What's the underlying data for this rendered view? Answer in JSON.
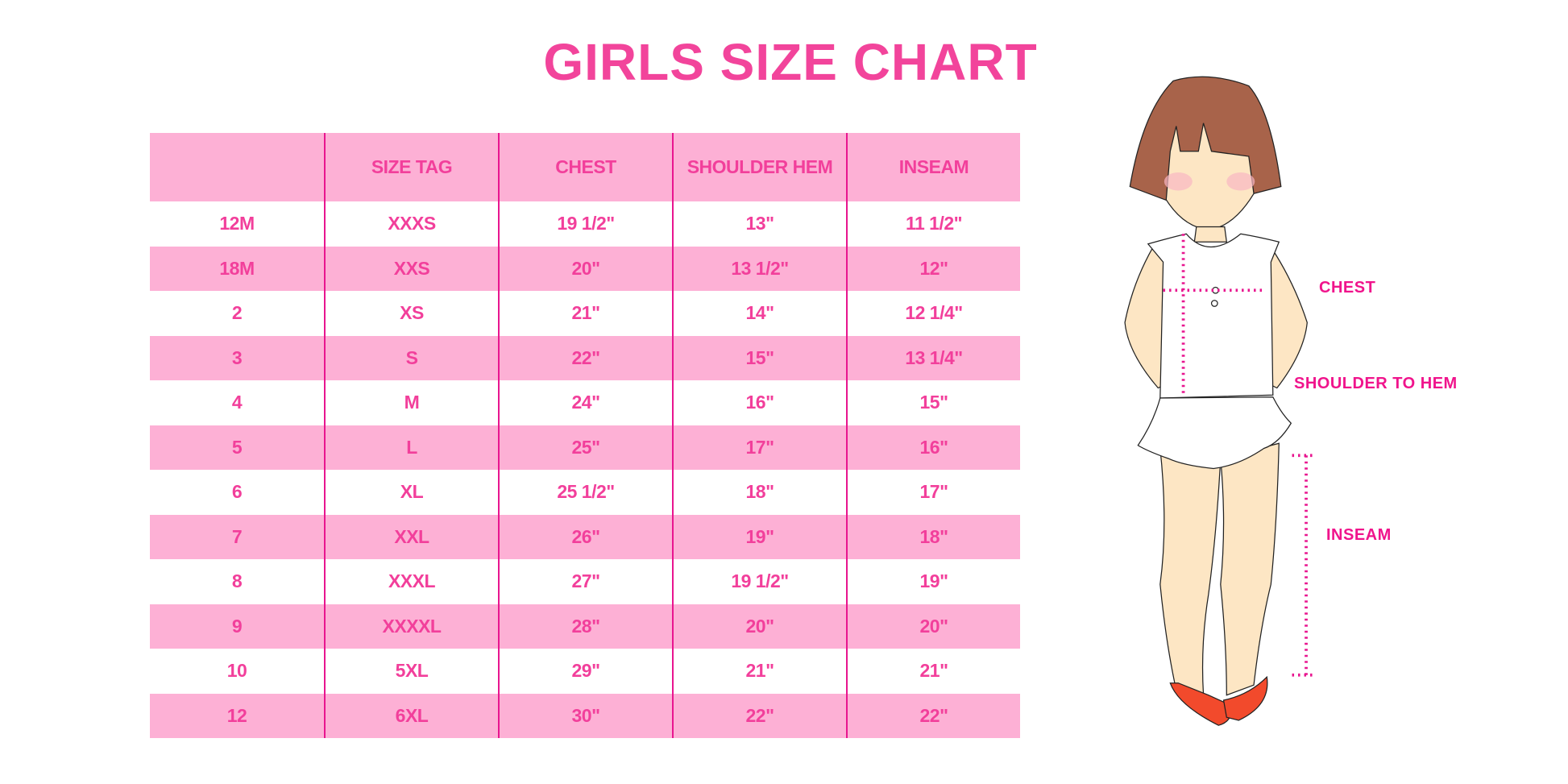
{
  "title": "GIRLS SIZE CHART",
  "colors": {
    "accent": "#f23f9b",
    "row_pink": "#fdb0d5",
    "divider": "#e8158f"
  },
  "table": {
    "headers": [
      "",
      "SIZE TAG",
      "CHEST",
      "SHOULDER HEM",
      "INSEAM"
    ],
    "rows": [
      [
        "12M",
        "XXXS",
        "19 1/2\"",
        "13\"",
        "11 1/2\""
      ],
      [
        "18M",
        "XXS",
        "20\"",
        "13 1/2\"",
        "12\""
      ],
      [
        "2",
        "XS",
        "21\"",
        "14\"",
        "12 1/4\""
      ],
      [
        "3",
        "S",
        "22\"",
        "15\"",
        "13 1/4\""
      ],
      [
        "4",
        "M",
        "24\"",
        "16\"",
        "15\""
      ],
      [
        "5",
        "L",
        "25\"",
        "17\"",
        "16\""
      ],
      [
        "6",
        "XL",
        "25 1/2\"",
        "18\"",
        "17\""
      ],
      [
        "7",
        "XXL",
        "26\"",
        "19\"",
        "18\""
      ],
      [
        "8",
        "XXXL",
        "27\"",
        "19 1/2\"",
        "19\""
      ],
      [
        "9",
        "XXXXL",
        "28\"",
        "20\"",
        "20\""
      ],
      [
        "10",
        "5XL",
        "29\"",
        "21\"",
        "21\""
      ],
      [
        "12",
        "6XL",
        "30\"",
        "22\"",
        "22\""
      ]
    ]
  },
  "diagram": {
    "labels": {
      "chest": "CHEST",
      "shoulder_to_hem": "SHOULDER TO HEM",
      "inseam": "INSEAM"
    }
  }
}
